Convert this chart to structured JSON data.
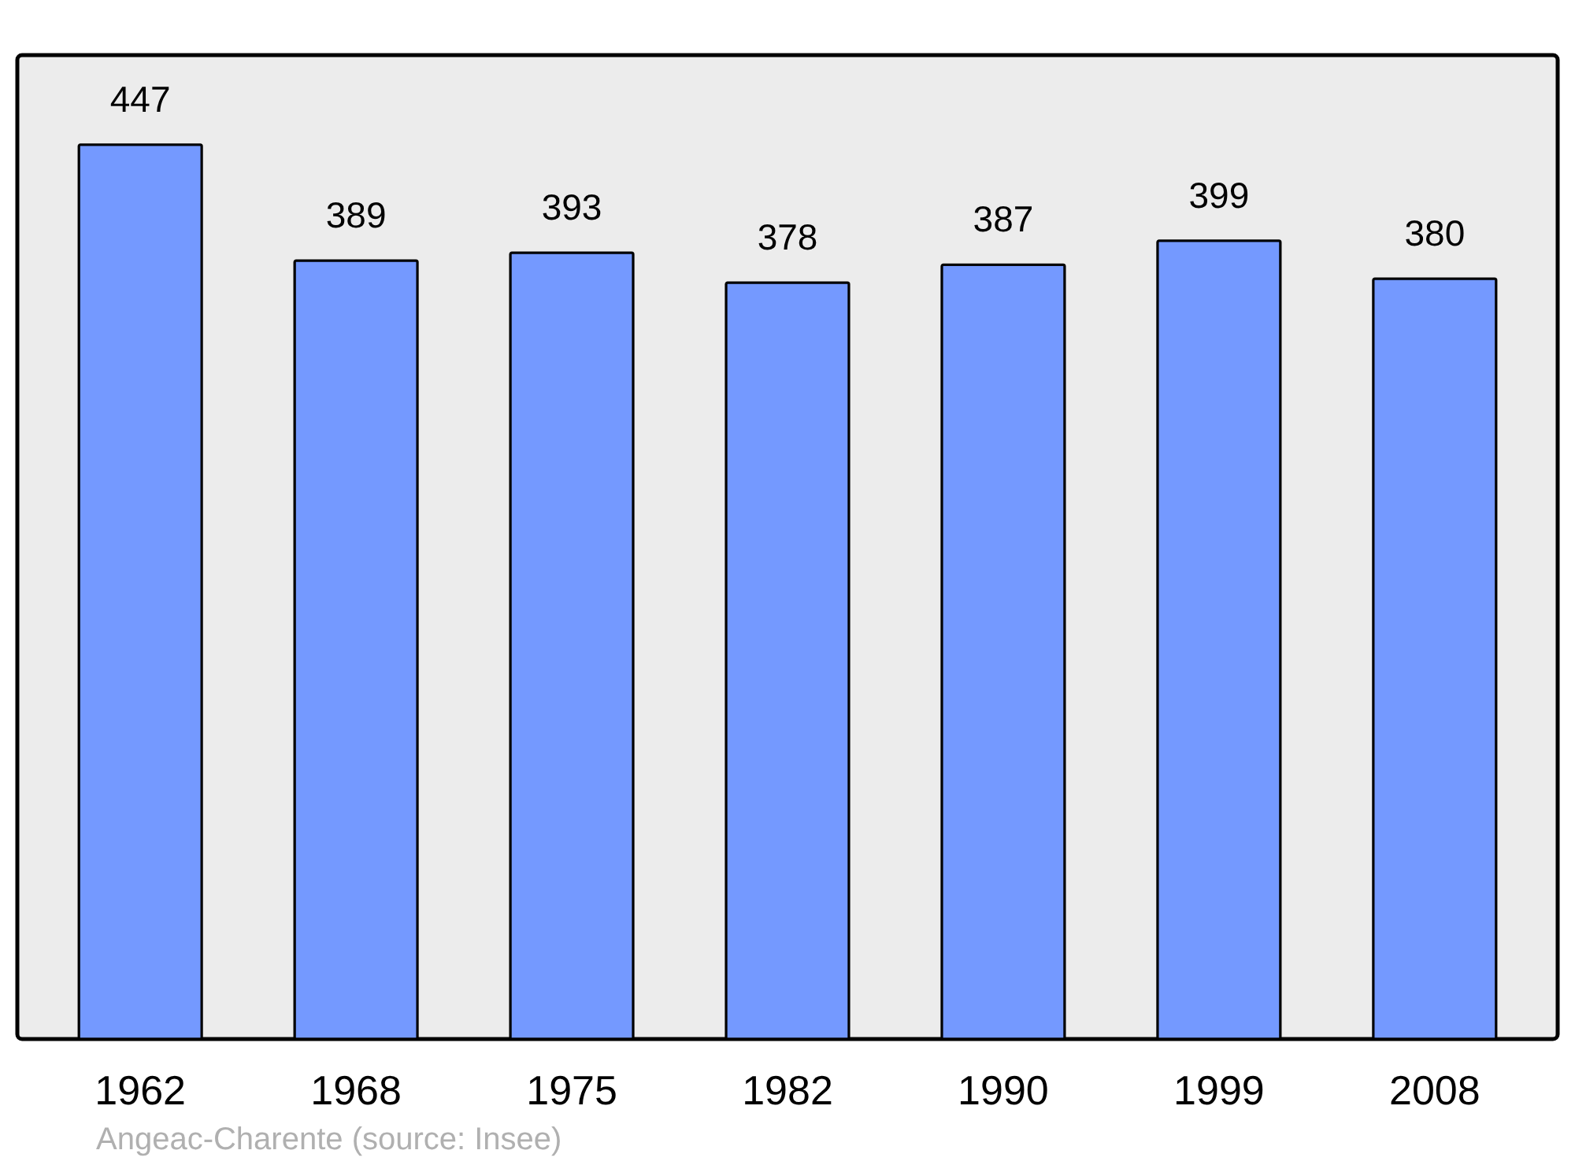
{
  "chart_data": {
    "type": "bar",
    "categories": [
      "1962",
      "1968",
      "1975",
      "1982",
      "1990",
      "1999",
      "2008"
    ],
    "values": [
      447,
      389,
      393,
      378,
      387,
      399,
      380
    ],
    "color": "#7499ff",
    "data_labels": true,
    "annotations": [
      "Angeac-Charente    (source: Insee)"
    ]
  }
}
